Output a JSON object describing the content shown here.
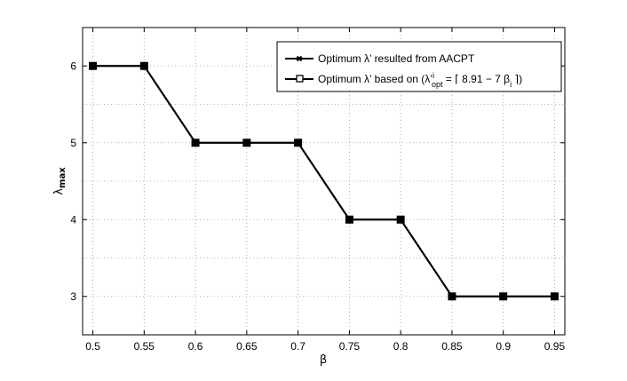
{
  "chart_data": {
    "type": "line",
    "xlabel": "β",
    "ylabel": "λ",
    "ylabel_sub": "max",
    "xlim": [
      0.49,
      0.96
    ],
    "ylim": [
      2.5,
      6.5
    ],
    "x_ticks": [
      0.5,
      0.55,
      0.6,
      0.65,
      0.7,
      0.75,
      0.8,
      0.85,
      0.9,
      0.95
    ],
    "x_tick_labels": [
      "0.5",
      "0.55",
      "0.6",
      "0.65",
      "0.7",
      "0.75",
      "0.8",
      "0.85",
      "0.9",
      "0.95"
    ],
    "y_ticks": [
      3,
      4,
      5,
      6
    ],
    "y_tick_labels": [
      "3",
      "4",
      "5",
      "6"
    ],
    "grid": true,
    "legend_position": "top-right",
    "x": [
      0.5,
      0.55,
      0.6,
      0.65,
      0.7,
      0.75,
      0.8,
      0.85,
      0.9,
      0.95
    ],
    "series": [
      {
        "name": "Optimum λ’ resulted from AACPT",
        "marker": "x",
        "color": "#000000",
        "values": [
          6,
          6,
          5,
          5,
          5,
          4,
          4,
          3,
          3,
          3
        ]
      },
      {
        "name": "Optimum λ’ based on (λ’",
        "name_sup": "i",
        "name_sub": "opt",
        "name_rest": " = ⌈ 8.91 − 7 β",
        "name_sub2": "i",
        "name_end": " ⌉)",
        "marker": "square",
        "color": "#000000",
        "values": [
          6,
          6,
          5,
          5,
          5,
          4,
          4,
          3,
          3,
          3
        ]
      }
    ]
  }
}
